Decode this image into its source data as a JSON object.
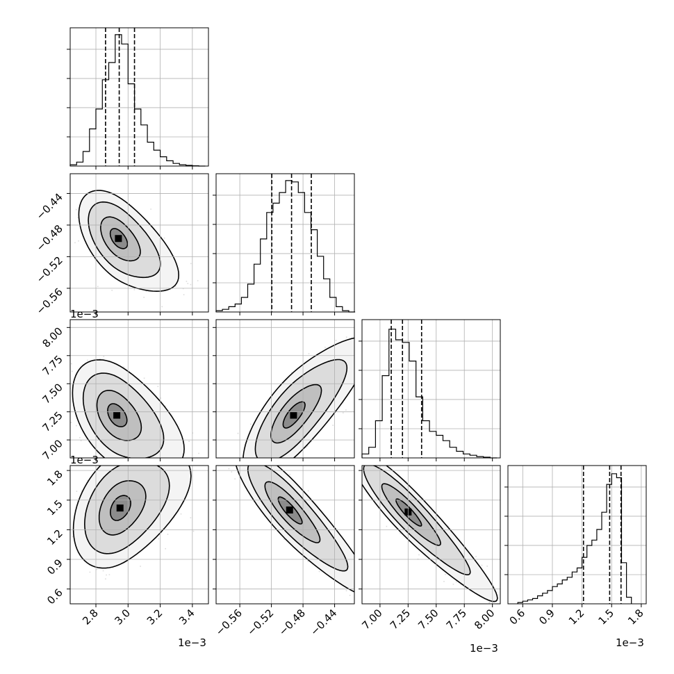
{
  "figure": {
    "type": "corner-plot",
    "offset_label": "1e−3"
  },
  "chart_data": [
    {
      "type": "histogram",
      "panel": "p00",
      "param": "x0",
      "xlim": [
        2.64,
        3.5
      ],
      "ylim": [
        0,
        1
      ],
      "x_ticks": [
        2.8,
        3.0,
        3.2,
        3.4
      ],
      "x_tick_labels": [
        "2.8",
        "3.0",
        "3.2",
        "3.4"
      ],
      "bin_edges": [
        2.64,
        2.68,
        2.72,
        2.76,
        2.8,
        2.84,
        2.88,
        2.92,
        2.96,
        3.0,
        3.04,
        3.08,
        3.12,
        3.16,
        3.2,
        3.24,
        3.28,
        3.32,
        3.36,
        3.4,
        3.44,
        3.48
      ],
      "counts": [
        0.01,
        0.03,
        0.11,
        0.28,
        0.43,
        0.65,
        0.78,
        0.99,
        0.92,
        0.62,
        0.43,
        0.31,
        0.18,
        0.12,
        0.07,
        0.04,
        0.02,
        0.01,
        0.005,
        0.002,
        0.0
      ],
      "quantile_lines": [
        2.86,
        2.945,
        3.04
      ]
    },
    {
      "type": "histogram",
      "panel": "p11",
      "param": "x1",
      "xlim": [
        -0.59,
        -0.415
      ],
      "ylim": [
        0,
        1
      ],
      "x_ticks": [
        -0.56,
        -0.52,
        -0.48,
        -0.44
      ],
      "x_tick_labels": [
        "−0.56",
        "−0.52",
        "−0.48",
        "−0.44"
      ],
      "bin_edges": [
        -0.59,
        -0.582,
        -0.574,
        -0.566,
        -0.558,
        -0.55,
        -0.542,
        -0.534,
        -0.526,
        -0.518,
        -0.51,
        -0.502,
        -0.494,
        -0.486,
        -0.478,
        -0.47,
        -0.462,
        -0.454,
        -0.446,
        -0.438,
        -0.43,
        -0.422,
        -0.414
      ],
      "counts": [
        0.01,
        0.02,
        0.04,
        0.06,
        0.11,
        0.21,
        0.36,
        0.55,
        0.75,
        0.82,
        0.9,
        0.99,
        0.98,
        0.9,
        0.75,
        0.62,
        0.42,
        0.25,
        0.11,
        0.04,
        0.01,
        0.0
      ],
      "quantile_lines": [
        -0.5195,
        -0.4945,
        -0.4695
      ]
    },
    {
      "type": "histogram",
      "panel": "p22",
      "param": "x2",
      "xlim": [
        6.84,
        8.07
      ],
      "ylim": [
        0,
        1
      ],
      "x_ticks": [
        7.0,
        7.25,
        7.5,
        7.75,
        8.0
      ],
      "x_tick_labels": [
        "7.00",
        "7.25",
        "7.50",
        "7.75",
        "8.00"
      ],
      "bin_edges": [
        6.84,
        6.9,
        6.96,
        7.02,
        7.08,
        7.14,
        7.2,
        7.26,
        7.32,
        7.38,
        7.44,
        7.5,
        7.56,
        7.62,
        7.68,
        7.74,
        7.8,
        7.86,
        7.92,
        7.98,
        8.04
      ],
      "counts": [
        0.03,
        0.08,
        0.28,
        0.62,
        0.97,
        0.89,
        0.87,
        0.73,
        0.46,
        0.28,
        0.2,
        0.17,
        0.13,
        0.08,
        0.05,
        0.03,
        0.02,
        0.01,
        0.005,
        0.0
      ],
      "quantile_lines": [
        7.1,
        7.2,
        7.37
      ]
    },
    {
      "type": "histogram",
      "panel": "p33",
      "param": "x3",
      "xlim": [
        0.45,
        1.85
      ],
      "ylim": [
        0,
        1
      ],
      "x_ticks": [
        0.6,
        0.9,
        1.2,
        1.5,
        1.8
      ],
      "x_tick_labels": [
        "0.6",
        "0.9",
        "1.2",
        "1.5",
        "1.8"
      ],
      "bin_edges": [
        0.55,
        0.6,
        0.65,
        0.7,
        0.75,
        0.8,
        0.85,
        0.9,
        0.95,
        1.0,
        1.05,
        1.1,
        1.15,
        1.2,
        1.25,
        1.3,
        1.35,
        1.4,
        1.45,
        1.5,
        1.55,
        1.6,
        1.65,
        1.7
      ],
      "counts": [
        0.01,
        0.02,
        0.03,
        0.04,
        0.06,
        0.08,
        0.1,
        0.13,
        0.15,
        0.18,
        0.2,
        0.24,
        0.27,
        0.35,
        0.44,
        0.48,
        0.56,
        0.69,
        0.9,
        0.98,
        0.95,
        0.31,
        0.05
      ],
      "quantile_lines": [
        1.215,
        1.48,
        1.595
      ]
    },
    {
      "type": "contour-2d",
      "panel": "p10",
      "xparam": "x0",
      "yparam": "x1",
      "xlim": [
        2.64,
        3.5
      ],
      "ylim": [
        -0.59,
        -0.415
      ],
      "y_ticks": [
        -0.56,
        -0.52,
        -0.48,
        -0.44
      ],
      "y_tick_labels": [
        "−0.56",
        "−0.52",
        "−0.48",
        "−0.44"
      ],
      "mean": [
        2.94,
        -0.497
      ],
      "sd": [
        0.085,
        0.021
      ],
      "rho": -0.5,
      "n_scatter": 1800
    },
    {
      "type": "contour-2d",
      "panel": "p20",
      "xparam": "x0",
      "yparam": "x2",
      "xlim": [
        2.64,
        3.5
      ],
      "ylim": [
        6.84,
        8.07
      ],
      "y_ticks": [
        7.0,
        7.25,
        7.5,
        7.75,
        8.0
      ],
      "y_tick_labels": [
        "7.00",
        "7.25",
        "7.50",
        "7.75",
        "8.00"
      ],
      "mean": [
        2.93,
        7.22
      ],
      "sd": [
        0.095,
        0.17
      ],
      "rho": -0.4,
      "n_scatter": 1800
    },
    {
      "type": "contour-2d",
      "panel": "p21",
      "xparam": "x1",
      "yparam": "x2",
      "xlim": [
        -0.59,
        -0.415
      ],
      "ylim": [
        6.84,
        8.07
      ],
      "mean": [
        -0.492,
        7.22
      ],
      "sd": [
        0.022,
        0.19
      ],
      "rho": 0.72,
      "n_scatter": 1800
    },
    {
      "type": "contour-2d",
      "panel": "p30",
      "xparam": "x0",
      "yparam": "x3",
      "xlim": [
        2.64,
        3.5
      ],
      "ylim": [
        0.45,
        1.85
      ],
      "y_ticks": [
        0.6,
        0.9,
        1.2,
        1.5,
        1.8
      ],
      "y_tick_labels": [
        "0.6",
        "0.9",
        "1.2",
        "1.5",
        "1.8"
      ],
      "mean": [
        2.95,
        1.42
      ],
      "sd": [
        0.1,
        0.21
      ],
      "rho": 0.35,
      "n_scatter": 1800
    },
    {
      "type": "contour-2d",
      "panel": "p31",
      "xparam": "x1",
      "yparam": "x3",
      "xlim": [
        -0.59,
        -0.415
      ],
      "ylim": [
        0.45,
        1.85
      ],
      "mean": [
        -0.497,
        1.4
      ],
      "sd": [
        0.024,
        0.22
      ],
      "rho": -0.85,
      "n_scatter": 1800
    },
    {
      "type": "contour-2d",
      "panel": "p32",
      "xparam": "x2",
      "yparam": "x3",
      "xlim": [
        6.84,
        8.07
      ],
      "ylim": [
        0.45,
        1.85
      ],
      "mean": [
        7.25,
        1.38
      ],
      "sd": [
        0.18,
        0.22
      ],
      "rho": -0.9,
      "n_scatter": 1800
    }
  ]
}
